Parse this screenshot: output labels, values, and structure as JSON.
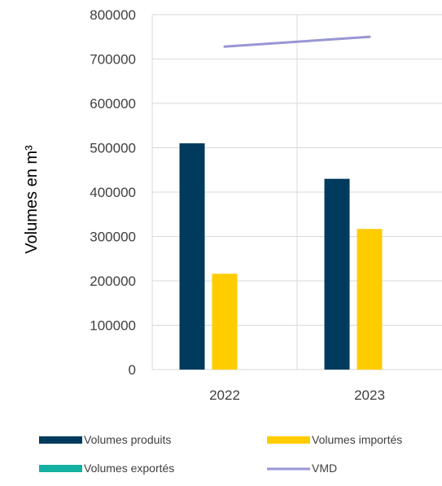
{
  "chart_data": {
    "type": "bar",
    "categories": [
      "2022",
      "2023"
    ],
    "series": [
      {
        "name": "Volumes produits",
        "kind": "bar",
        "color": "#003a5d",
        "values": [
          510000,
          430000
        ]
      },
      {
        "name": "Volumes importés",
        "kind": "bar",
        "color": "#ffcc00",
        "values": [
          216000,
          317000
        ]
      },
      {
        "name": "Volumes exportés",
        "kind": "bar",
        "color": "#13b1a2",
        "values": [
          0,
          0
        ]
      },
      {
        "name": "VMD",
        "kind": "line",
        "color": "#9896d4",
        "values": [
          728000,
          750000
        ]
      }
    ],
    "ylabel": "Volumes en m³",
    "ylim": [
      0,
      800000
    ],
    "yticks": [
      "0",
      "100000",
      "200000",
      "300000",
      "400000",
      "500000",
      "600000",
      "700000",
      "800000"
    ],
    "grid": true,
    "legend_position": "bottom"
  }
}
